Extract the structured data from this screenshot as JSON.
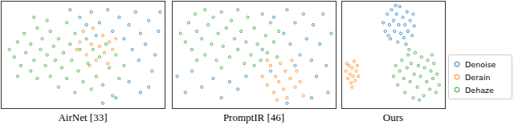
{
  "chart_data": [
    {
      "type": "scatter",
      "title": "AirNet [33]",
      "xlim": [
        0,
        100
      ],
      "ylim": [
        0,
        100
      ],
      "tick_labels": false,
      "series": [
        {
          "name": "Denoise",
          "color": "#1f77b4",
          "values": [
            [
              42,
              92
            ],
            [
              48,
              85
            ],
            [
              55,
              90
            ],
            [
              60,
              80
            ],
            [
              65,
              92
            ],
            [
              68,
              72
            ],
            [
              72,
              85
            ],
            [
              75,
              65
            ],
            [
              78,
              78
            ],
            [
              80,
              55
            ],
            [
              82,
              90
            ],
            [
              84,
              45
            ],
            [
              85,
              70
            ],
            [
              88,
              60
            ],
            [
              90,
              82
            ],
            [
              92,
              35
            ],
            [
              94,
              50
            ],
            [
              96,
              72
            ],
            [
              78,
              25
            ],
            [
              85,
              15
            ],
            [
              70,
              10
            ],
            [
              62,
              5
            ],
            [
              90,
              20
            ],
            [
              58,
              68
            ],
            [
              52,
              78
            ],
            [
              97,
              90
            ]
          ]
        },
        {
          "name": "Derain",
          "color": "#ff7f0e",
          "values": [
            [
              48,
              62
            ],
            [
              50,
              72
            ],
            [
              52,
              50
            ],
            [
              55,
              60
            ],
            [
              56,
              75
            ],
            [
              58,
              45
            ],
            [
              60,
              58
            ],
            [
              62,
              68
            ],
            [
              63,
              52
            ],
            [
              65,
              42
            ],
            [
              66,
              62
            ],
            [
              68,
              55
            ],
            [
              70,
              65
            ],
            [
              54,
              40
            ],
            [
              46,
              55
            ]
          ]
        },
        {
          "name": "Dehaze",
          "color": "#2ca02c",
          "values": [
            [
              5,
              55
            ],
            [
              8,
              48
            ],
            [
              10,
              62
            ],
            [
              12,
              40
            ],
            [
              14,
              70
            ],
            [
              15,
              52
            ],
            [
              18,
              35
            ],
            [
              18,
              60
            ],
            [
              20,
              45
            ],
            [
              22,
              75
            ],
            [
              22,
              28
            ],
            [
              24,
              55
            ],
            [
              25,
              65
            ],
            [
              27,
              40
            ],
            [
              28,
              50
            ],
            [
              30,
              30
            ],
            [
              30,
              72
            ],
            [
              32,
              58
            ],
            [
              33,
              45
            ],
            [
              35,
              20
            ],
            [
              35,
              65
            ],
            [
              37,
              38
            ],
            [
              38,
              52
            ],
            [
              40,
              80
            ],
            [
              40,
              28
            ],
            [
              42,
              60
            ],
            [
              43,
              45
            ],
            [
              45,
              15
            ],
            [
              45,
              70
            ],
            [
              47,
              35
            ],
            [
              48,
              55
            ],
            [
              50,
              25
            ],
            [
              52,
              65
            ],
            [
              53,
              42
            ],
            [
              55,
              18
            ],
            [
              56,
              55
            ],
            [
              58,
              30
            ],
            [
              60,
              48
            ],
            [
              62,
              22
            ],
            [
              64,
              60
            ],
            [
              66,
              38
            ],
            [
              68,
              12
            ],
            [
              70,
              50
            ],
            [
              72,
              28
            ],
            [
              75,
              40
            ],
            [
              20,
              85
            ],
            [
              10,
              30
            ],
            [
              28,
              82
            ]
          ]
        }
      ]
    },
    {
      "type": "scatter",
      "title": "PromptIR [46]",
      "xlim": [
        0,
        100
      ],
      "ylim": [
        0,
        100
      ],
      "tick_labels": false,
      "series": [
        {
          "name": "Denoise",
          "color": "#1f77b4",
          "values": [
            [
              3,
              30
            ],
            [
              8,
              15
            ],
            [
              12,
              35
            ],
            [
              18,
              20
            ],
            [
              25,
              28
            ],
            [
              30,
              10
            ],
            [
              35,
              25
            ],
            [
              40,
              18
            ],
            [
              45,
              30
            ],
            [
              55,
              55
            ],
            [
              62,
              85
            ],
            [
              68,
              70
            ],
            [
              70,
              92
            ],
            [
              72,
              60
            ],
            [
              75,
              80
            ],
            [
              78,
              50
            ],
            [
              80,
              88
            ],
            [
              82,
              65
            ],
            [
              85,
              45
            ],
            [
              86,
              78
            ],
            [
              88,
              30
            ],
            [
              90,
              60
            ],
            [
              92,
              88
            ],
            [
              94,
              40
            ],
            [
              95,
              15
            ],
            [
              97,
              70
            ],
            [
              85,
              10
            ],
            [
              75,
              40
            ],
            [
              70,
              5
            ],
            [
              60,
              35
            ]
          ]
        },
        {
          "name": "Derain",
          "color": "#ff7f0e",
          "values": [
            [
              55,
              30
            ],
            [
              58,
              22
            ],
            [
              60,
              40
            ],
            [
              62,
              15
            ],
            [
              63,
              30
            ],
            [
              65,
              25
            ],
            [
              66,
              42
            ],
            [
              68,
              18
            ],
            [
              69,
              35
            ],
            [
              70,
              10
            ],
            [
              72,
              28
            ],
            [
              73,
              45
            ],
            [
              75,
              20
            ],
            [
              76,
              35
            ],
            [
              78,
              25
            ],
            [
              80,
              12
            ],
            [
              64,
              8
            ],
            [
              58,
              45
            ]
          ]
        },
        {
          "name": "Dehaze",
          "color": "#2ca02c",
          "values": [
            [
              5,
              70
            ],
            [
              8,
              62
            ],
            [
              10,
              80
            ],
            [
              12,
              55
            ],
            [
              14,
              88
            ],
            [
              15,
              72
            ],
            [
              18,
              65
            ],
            [
              20,
              50
            ],
            [
              20,
              92
            ],
            [
              22,
              78
            ],
            [
              24,
              60
            ],
            [
              25,
              85
            ],
            [
              27,
              45
            ],
            [
              28,
              70
            ],
            [
              30,
              90
            ],
            [
              31,
              58
            ],
            [
              33,
              75
            ],
            [
              35,
              48
            ],
            [
              36,
              82
            ],
            [
              38,
              65
            ],
            [
              40,
              55
            ],
            [
              40,
              92
            ],
            [
              42,
              72
            ],
            [
              44,
              42
            ],
            [
              45,
              62
            ],
            [
              46,
              85
            ],
            [
              48,
              50
            ],
            [
              50,
              75
            ],
            [
              52,
              60
            ],
            [
              54,
              45
            ],
            [
              55,
              88
            ],
            [
              57,
              68
            ],
            [
              58,
              52
            ],
            [
              60,
              80
            ],
            [
              62,
              62
            ],
            [
              64,
              48
            ],
            [
              65,
              72
            ],
            [
              30,
              38
            ],
            [
              15,
              45
            ],
            [
              50,
              40
            ]
          ]
        }
      ]
    },
    {
      "type": "scatter",
      "title": "Ours",
      "xlim": [
        0,
        100
      ],
      "ylim": [
        0,
        100
      ],
      "tick_labels": false,
      "series": [
        {
          "name": "Denoise",
          "color": "#1f77b4",
          "values": [
            [
              40,
              80
            ],
            [
              42,
              72
            ],
            [
              44,
              88
            ],
            [
              46,
              78
            ],
            [
              47,
              65
            ],
            [
              48,
              92
            ],
            [
              50,
              82
            ],
            [
              51,
              72
            ],
            [
              53,
              88
            ],
            [
              54,
              62
            ],
            [
              55,
              78
            ],
            [
              56,
              95
            ],
            [
              57,
              70
            ],
            [
              59,
              85
            ],
            [
              60,
              66
            ],
            [
              61,
              78
            ],
            [
              63,
              90
            ],
            [
              64,
              72
            ],
            [
              66,
              82
            ],
            [
              68,
              68
            ],
            [
              69,
              88
            ],
            [
              52,
              96
            ],
            [
              45,
              68
            ],
            [
              62,
              60
            ],
            [
              70,
              77
            ]
          ]
        },
        {
          "name": "Derain",
          "color": "#ff7f0e",
          "values": [
            [
              4,
              35
            ],
            [
              6,
              28
            ],
            [
              7,
              40
            ],
            [
              8,
              32
            ],
            [
              9,
              24
            ],
            [
              10,
              38
            ],
            [
              11,
              30
            ],
            [
              12,
              44
            ],
            [
              13,
              26
            ],
            [
              14,
              35
            ],
            [
              15,
              40
            ],
            [
              16,
              30
            ],
            [
              10,
              20
            ],
            [
              5,
              42
            ]
          ]
        },
        {
          "name": "Dehaze",
          "color": "#2ca02c",
          "values": [
            [
              50,
              30
            ],
            [
              52,
              40
            ],
            [
              54,
              22
            ],
            [
              56,
              35
            ],
            [
              58,
              45
            ],
            [
              60,
              28
            ],
            [
              61,
              15
            ],
            [
              63,
              38
            ],
            [
              64,
              50
            ],
            [
              66,
              25
            ],
            [
              67,
              42
            ],
            [
              69,
              10
            ],
            [
              70,
              32
            ],
            [
              71,
              52
            ],
            [
              73,
              20
            ],
            [
              74,
              40
            ],
            [
              76,
              30
            ],
            [
              77,
              48
            ],
            [
              79,
              12
            ],
            [
              80,
              38
            ],
            [
              82,
              25
            ],
            [
              83,
              45
            ],
            [
              85,
              18
            ],
            [
              86,
              35
            ],
            [
              88,
              28
            ],
            [
              89,
              42
            ],
            [
              91,
              15
            ],
            [
              92,
              32
            ],
            [
              94,
              22
            ],
            [
              75,
              8
            ],
            [
              65,
              55
            ],
            [
              87,
              50
            ]
          ]
        }
      ]
    }
  ]
}
